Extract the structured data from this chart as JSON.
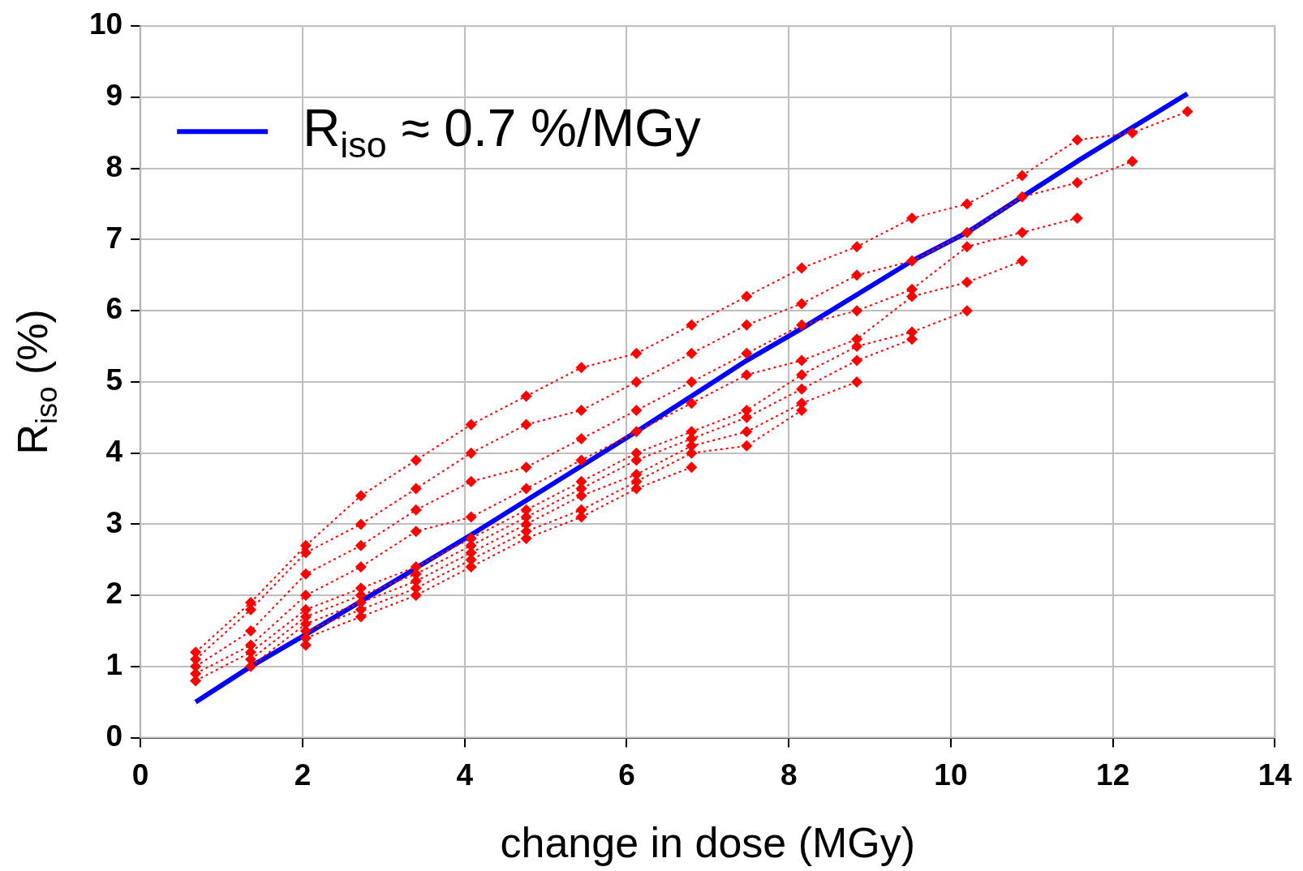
{
  "chart_data": {
    "type": "line",
    "xlabel": "change in dose (MGy)",
    "ylabel": "R$_{iso}$ (%)",
    "xlim": [
      0,
      14
    ],
    "xticks": [
      0,
      2,
      4,
      6,
      8,
      10,
      12,
      14
    ],
    "ylim": [
      0,
      10
    ],
    "yticks": [
      0,
      1,
      2,
      3,
      4,
      5,
      6,
      7,
      8,
      9,
      10
    ],
    "grid": true,
    "legend": "top left",
    "series": [
      {
        "color": "#ff0000",
        "line_style": "dotted",
        "marker": "diamond",
        "x": [
          0.68,
          1.36,
          2.04,
          2.72,
          3.4,
          4.08,
          4.76,
          5.44,
          6.12,
          6.8,
          7.48,
          8.16,
          8.84,
          9.52,
          10.2,
          10.88,
          11.56,
          12.24,
          12.92
        ],
        "values": [
          1.2,
          1.9,
          2.7,
          3.4,
          3.9,
          4.4,
          4.8,
          5.2,
          5.4,
          5.8,
          6.2,
          6.6,
          6.9,
          7.3,
          7.5,
          7.9,
          8.4,
          8.5,
          8.8
        ]
      },
      {
        "color": "#ff0000",
        "line_style": "dotted",
        "marker": "diamond",
        "x": [
          0.68,
          1.36,
          2.04,
          2.72,
          3.4,
          4.08,
          4.76,
          5.44,
          6.12,
          6.8,
          7.48,
          8.16,
          8.84,
          9.52,
          10.2,
          10.88,
          11.56,
          12.24
        ],
        "values": [
          1.1,
          1.8,
          2.6,
          3.0,
          3.5,
          4.0,
          4.4,
          4.6,
          5.0,
          5.4,
          5.8,
          6.1,
          6.5,
          6.7,
          7.1,
          7.6,
          7.8,
          8.1
        ]
      },
      {
        "color": "#ff0000",
        "line_style": "dotted",
        "marker": "diamond",
        "x": [
          0.68,
          1.36,
          2.04,
          2.72,
          3.4,
          4.08,
          4.76,
          5.44,
          6.12,
          6.8,
          7.48,
          8.16,
          8.84,
          9.52,
          10.2,
          10.88,
          11.56
        ],
        "values": [
          1.0,
          1.5,
          2.3,
          2.7,
          3.2,
          3.6,
          3.8,
          4.2,
          4.6,
          5.0,
          5.4,
          5.8,
          6.0,
          6.3,
          6.9,
          7.1,
          7.3
        ]
      },
      {
        "color": "#ff0000",
        "line_style": "dotted",
        "marker": "diamond",
        "x": [
          0.68,
          1.36,
          2.04,
          2.72,
          3.4,
          4.08,
          4.76,
          5.44,
          6.12,
          6.8,
          7.48,
          8.16,
          8.84,
          9.52,
          10.2,
          10.88
        ],
        "values": [
          0.9,
          1.3,
          2.0,
          2.4,
          2.9,
          3.1,
          3.5,
          3.9,
          4.3,
          4.7,
          5.1,
          5.3,
          5.6,
          6.2,
          6.4,
          6.7
        ]
      },
      {
        "color": "#ff0000",
        "line_style": "dotted",
        "marker": "diamond",
        "x": [
          0.68,
          1.36,
          2.04,
          2.72,
          3.4,
          4.08,
          4.76,
          5.44,
          6.12,
          6.8,
          7.48,
          8.16,
          8.84,
          9.52,
          10.2
        ],
        "values": [
          0.8,
          1.2,
          1.8,
          2.1,
          2.4,
          2.8,
          3.2,
          3.6,
          4.0,
          4.3,
          4.6,
          5.1,
          5.5,
          5.7,
          6.0
        ]
      },
      {
        "color": "#ff0000",
        "line_style": "dotted",
        "marker": "diamond",
        "x": [
          1.36,
          2.04,
          2.72,
          3.4,
          4.08,
          4.76,
          5.44,
          6.12,
          6.8,
          7.48,
          8.16,
          8.84,
          9.52
        ],
        "values": [
          1.1,
          1.7,
          2.0,
          2.3,
          2.7,
          3.1,
          3.5,
          3.9,
          4.2,
          4.5,
          4.9,
          5.3,
          5.6
        ]
      },
      {
        "color": "#ff0000",
        "line_style": "dotted",
        "marker": "diamond",
        "x": [
          1.36,
          2.04,
          2.72,
          3.4,
          4.08,
          4.76,
          5.44,
          6.12,
          6.8,
          7.48,
          8.16,
          8.84
        ],
        "values": [
          1.0,
          1.6,
          1.9,
          2.2,
          2.6,
          3.0,
          3.4,
          3.7,
          4.1,
          4.3,
          4.7,
          5.0
        ]
      },
      {
        "color": "#ff0000",
        "line_style": "dotted",
        "marker": "diamond",
        "x": [
          2.04,
          2.72,
          3.4,
          4.08,
          4.76,
          5.44,
          6.12,
          6.8,
          7.48,
          8.16
        ],
        "values": [
          1.5,
          1.8,
          2.1,
          2.5,
          2.9,
          3.2,
          3.6,
          4.0,
          4.1,
          4.6
        ]
      },
      {
        "color": "#ff0000",
        "line_style": "dotted",
        "marker": "diamond",
        "x": [
          2.04,
          2.72,
          3.4,
          4.08,
          4.76,
          5.44,
          6.12,
          6.8
        ],
        "values": [
          1.4,
          1.7,
          2.0,
          2.4,
          2.8,
          3.1,
          3.5,
          3.8
        ]
      },
      {
        "color": "#ff0000",
        "line_style": "dotted",
        "marker": "diamond",
        "x": [
          2.04
        ],
        "values": [
          1.3
        ]
      },
      {
        "name": "R$_{iso}$ ≈ 0.7 %/MGy",
        "color": "#0000ff",
        "line_style": "solid",
        "marker": "none",
        "x": [
          0.68,
          1.36,
          2.04,
          4.08,
          6.12,
          6.8,
          7.48,
          8.16,
          9.52,
          10.2,
          11.56,
          12.92
        ],
        "values": [
          0.5,
          1.0,
          1.45,
          2.85,
          4.3,
          4.8,
          5.3,
          5.75,
          6.7,
          7.1,
          8.1,
          9.05
        ]
      }
    ]
  }
}
